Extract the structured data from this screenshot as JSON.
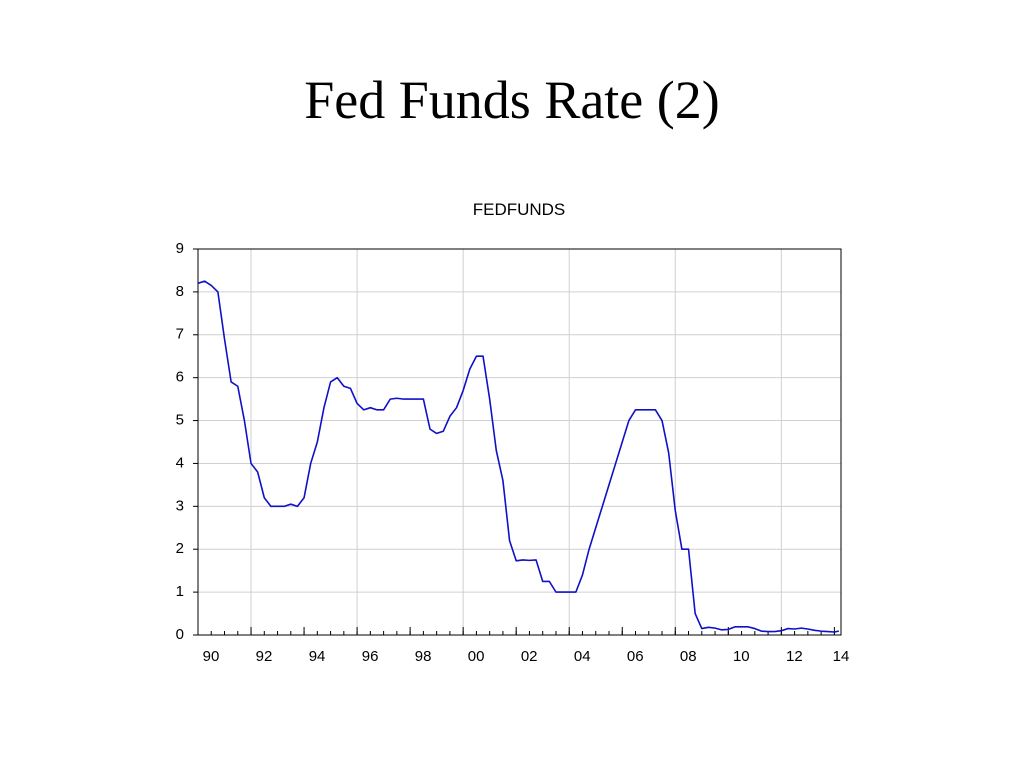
{
  "title": "Fed Funds Rate (2)",
  "chart_data": {
    "type": "line",
    "title": "FEDFUNDS",
    "x": [
      1990.0,
      1990.25,
      1990.5,
      1990.75,
      1991.0,
      1991.25,
      1991.5,
      1991.75,
      1992.0,
      1992.25,
      1992.5,
      1992.75,
      1993.0,
      1993.25,
      1993.5,
      1993.75,
      1994.0,
      1994.25,
      1994.5,
      1994.75,
      1995.0,
      1995.25,
      1995.5,
      1995.75,
      1996.0,
      1996.25,
      1996.5,
      1996.75,
      1997.0,
      1997.25,
      1997.5,
      1997.75,
      1998.0,
      1998.25,
      1998.5,
      1998.75,
      1999.0,
      1999.25,
      1999.5,
      1999.75,
      2000.0,
      2000.25,
      2000.5,
      2000.75,
      2001.0,
      2001.25,
      2001.5,
      2001.75,
      2002.0,
      2002.25,
      2002.5,
      2002.75,
      2003.0,
      2003.25,
      2003.5,
      2003.75,
      2004.0,
      2004.25,
      2004.5,
      2004.75,
      2005.0,
      2005.25,
      2005.5,
      2005.75,
      2006.0,
      2006.25,
      2006.5,
      2006.75,
      2007.0,
      2007.25,
      2007.5,
      2007.75,
      2008.0,
      2008.25,
      2008.5,
      2008.75,
      2009.0,
      2009.25,
      2009.5,
      2009.75,
      2010.0,
      2010.25,
      2010.5,
      2010.75,
      2011.0,
      2011.25,
      2011.5,
      2011.75,
      2012.0,
      2012.25,
      2012.5,
      2012.75,
      2013.0,
      2013.25,
      2013.5,
      2013.75,
      2014.0,
      2014.17
    ],
    "series": [
      {
        "name": "FEDFUNDS",
        "color": "#1010c8",
        "values": [
          8.2,
          8.25,
          8.15,
          8.0,
          6.9,
          5.9,
          5.8,
          5.0,
          4.0,
          3.8,
          3.2,
          3.0,
          3.0,
          3.0,
          3.05,
          3.0,
          3.2,
          4.0,
          4.5,
          5.3,
          5.9,
          6.0,
          5.8,
          5.75,
          5.4,
          5.25,
          5.3,
          5.25,
          5.25,
          5.5,
          5.52,
          5.5,
          5.5,
          5.5,
          5.5,
          4.8,
          4.7,
          4.75,
          5.1,
          5.3,
          5.7,
          6.2,
          6.5,
          6.5,
          5.5,
          4.3,
          3.6,
          2.2,
          1.73,
          1.75,
          1.74,
          1.75,
          1.25,
          1.25,
          1.0,
          1.0,
          1.0,
          1.0,
          1.4,
          2.0,
          2.5,
          3.0,
          3.5,
          4.0,
          4.5,
          5.0,
          5.25,
          5.25,
          5.25,
          5.25,
          5.0,
          4.25,
          2.9,
          2.0,
          2.0,
          0.5,
          0.15,
          0.18,
          0.16,
          0.12,
          0.13,
          0.19,
          0.19,
          0.19,
          0.15,
          0.09,
          0.08,
          0.08,
          0.1,
          0.15,
          0.14,
          0.16,
          0.14,
          0.11,
          0.09,
          0.08,
          0.07,
          0.09
        ]
      }
    ],
    "xlim": [
      1990,
      2014.25
    ],
    "xticks": [
      {
        "value": 1990,
        "label": "90"
      },
      {
        "value": 1992,
        "label": "92"
      },
      {
        "value": 1994,
        "label": "94"
      },
      {
        "value": 1996,
        "label": "96"
      },
      {
        "value": 1998,
        "label": "98"
      },
      {
        "value": 2000,
        "label": "00"
      },
      {
        "value": 2002,
        "label": "02"
      },
      {
        "value": 2004,
        "label": "04"
      },
      {
        "value": 2006,
        "label": "06"
      },
      {
        "value": 2008,
        "label": "08"
      },
      {
        "value": 2010,
        "label": "10"
      },
      {
        "value": 2012,
        "label": "12"
      },
      {
        "value": 2014,
        "label": "14"
      }
    ],
    "ylim": [
      0,
      9
    ],
    "yticks": [
      0,
      1,
      2,
      3,
      4,
      5,
      6,
      7,
      8,
      9
    ],
    "grid": true
  }
}
